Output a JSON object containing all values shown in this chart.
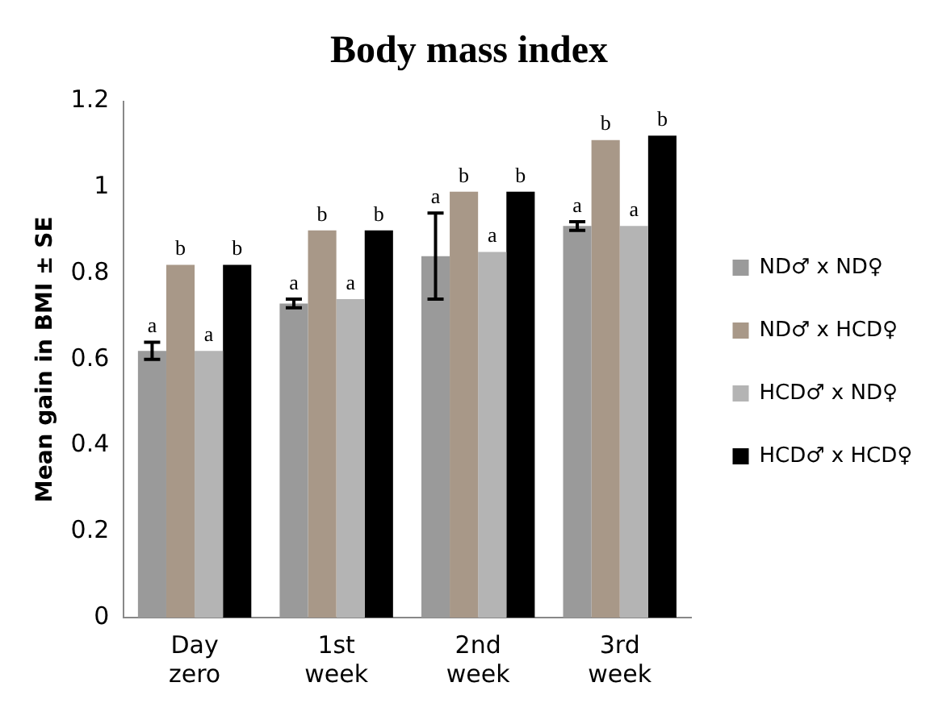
{
  "chart_data": {
    "type": "bar",
    "title": "Body mass index",
    "ylabel": "Mean gain in BMI ± SE",
    "categories": [
      "Day zero",
      "1st week",
      "2nd week",
      "3rd week"
    ],
    "series": [
      {
        "name": "ND♂ x ND♀",
        "color": "#9a9a9a",
        "values": [
          0.62,
          0.73,
          0.84,
          0.91
        ],
        "errors": [
          0.02,
          0.01,
          0.1,
          0.01
        ],
        "value_labels": [
          "a",
          "a",
          "a",
          "a"
        ]
      },
      {
        "name": "ND♂ x HCD♀",
        "color": "#a89888",
        "values": [
          0.82,
          0.9,
          0.99,
          1.11
        ],
        "value_labels": [
          "b",
          "b",
          "b",
          "b"
        ]
      },
      {
        "name": "HCD♂ x ND♀",
        "color": "#b4b4b4",
        "values": [
          0.62,
          0.74,
          0.85,
          0.91
        ],
        "value_labels": [
          "a",
          "a",
          "a",
          "a"
        ]
      },
      {
        "name": "HCD♂ x HCD♀",
        "color": "#000000",
        "values": [
          0.82,
          0.9,
          0.99,
          1.12
        ],
        "value_labels": [
          "b",
          "b",
          "b",
          "b"
        ]
      }
    ],
    "ylim": [
      0,
      1.2
    ],
    "yticks": [
      0,
      0.2,
      0.4,
      0.6,
      0.8,
      1,
      1.2
    ],
    "grid": false,
    "legend": "right"
  }
}
